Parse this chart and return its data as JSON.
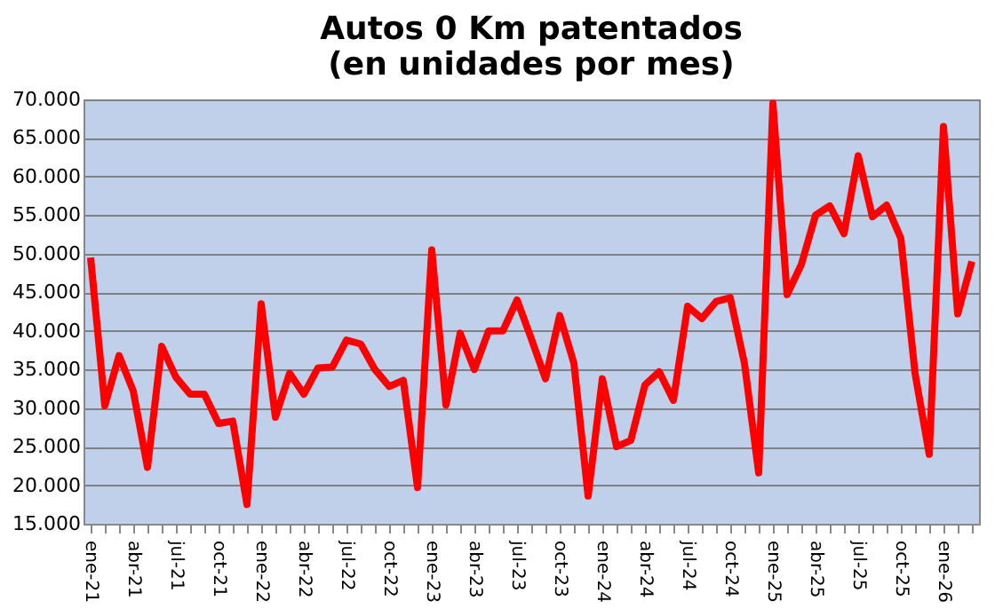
{
  "chart_data": {
    "type": "line",
    "title": "Autos 0 Km patentados\n(en unidades por mes)",
    "categories": [
      "ene-21",
      null,
      null,
      "abr-21",
      null,
      null,
      "jul-21",
      null,
      null,
      "oct-21",
      null,
      null,
      "ene-22",
      null,
      null,
      "abr-22",
      null,
      null,
      "jul-22",
      null,
      null,
      "oct-22",
      null,
      null,
      "ene-23",
      null,
      null,
      "abr-23",
      null,
      null,
      "jul-23",
      null,
      null,
      "oct-23",
      null,
      null,
      "ene-24",
      null,
      null,
      "abr-24",
      null,
      null,
      "jul-24",
      null,
      null,
      "oct-24",
      null,
      null,
      "ene-25",
      null,
      null,
      "abr-25",
      null,
      null,
      "jul-25",
      null,
      null,
      "oct-25",
      null,
      null,
      "ene-26",
      null,
      null
    ],
    "series": [
      {
        "color": "#ff0000",
        "values": [
          49500,
          30300,
          36800,
          32200,
          22300,
          38000,
          34000,
          31800,
          31800,
          28000,
          28300,
          17500,
          43500,
          28800,
          34500,
          31800,
          35200,
          35300,
          38800,
          38300,
          35000,
          32800,
          33600,
          19700,
          50500,
          30400,
          39700,
          35000,
          40000,
          40000,
          44000,
          39000,
          33800,
          42000,
          35800,
          18600,
          33800,
          25000,
          25800,
          33000,
          34700,
          31000,
          43200,
          41600,
          43800,
          44300,
          35800,
          21600,
          69500,
          44700,
          48600,
          55000,
          56200,
          52600,
          62700,
          54800,
          56300,
          52000,
          34500,
          24000,
          66500,
          42200,
          49000
        ]
      }
    ],
    "ylim": [
      15000,
      70000
    ],
    "yticks": [
      {
        "value": 15000,
        "label": "15.000"
      },
      {
        "value": 20000,
        "label": "20.000"
      },
      {
        "value": 25000,
        "label": "25.000"
      },
      {
        "value": 30000,
        "label": "30.000"
      },
      {
        "value": 35000,
        "label": "35.000"
      },
      {
        "value": 40000,
        "label": "40.000"
      },
      {
        "value": 45000,
        "label": "45.000"
      },
      {
        "value": 50000,
        "label": "50.000"
      },
      {
        "value": 55000,
        "label": "55.000"
      },
      {
        "value": 60000,
        "label": "60.000"
      },
      {
        "value": 65000,
        "label": "65.000"
      },
      {
        "value": 70000,
        "label": "70.000"
      }
    ],
    "grid": "y",
    "marker": "none",
    "line_style": "solid"
  }
}
